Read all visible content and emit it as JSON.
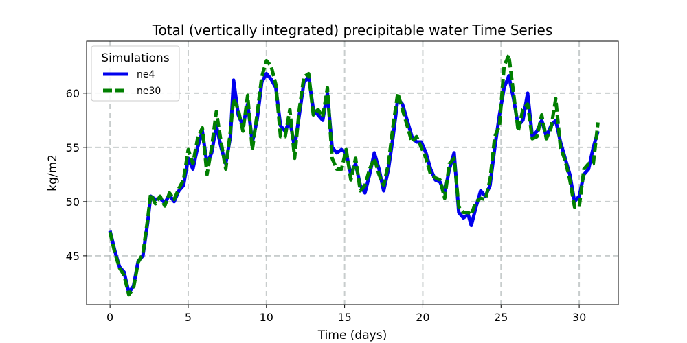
{
  "chart_data": {
    "type": "line",
    "title": "Total (vertically integrated) precipitable water Time Series",
    "xlabel": "Time (days)",
    "ylabel": "kg/m2",
    "xlim": [
      -1.5,
      32.5
    ],
    "ylim": [
      40.5,
      64.8
    ],
    "xticks": [
      0,
      5,
      10,
      15,
      20,
      25,
      30
    ],
    "xtick_labels": [
      "0",
      "5",
      "10",
      "15",
      "20",
      "25",
      "30"
    ],
    "yticks": [
      45,
      50,
      55,
      60
    ],
    "ytick_labels": [
      "45",
      "50",
      "55",
      "60"
    ],
    "grid": true,
    "legend": {
      "title": "Simulations",
      "position": "top-left"
    },
    "series": [
      {
        "name": "ne4",
        "color": "#0000ee",
        "style": "solid",
        "points": [
          [
            0,
            47.3
          ],
          [
            0.3,
            45.5
          ],
          [
            0.6,
            44.0
          ],
          [
            0.9,
            43.5
          ],
          [
            1.2,
            41.6
          ],
          [
            1.5,
            42.2
          ],
          [
            1.8,
            44.5
          ],
          [
            2.1,
            45.0
          ],
          [
            2.4,
            48.0
          ],
          [
            2.6,
            50.5
          ],
          [
            2.9,
            50.2
          ],
          [
            3.2,
            50.3
          ],
          [
            3.5,
            49.9
          ],
          [
            3.8,
            50.6
          ],
          [
            4.1,
            50.0
          ],
          [
            4.4,
            51.0
          ],
          [
            4.7,
            51.5
          ],
          [
            5.0,
            54.0
          ],
          [
            5.3,
            53.0
          ],
          [
            5.6,
            55.0
          ],
          [
            5.9,
            56.5
          ],
          [
            6.2,
            53.5
          ],
          [
            6.5,
            54.5
          ],
          [
            6.8,
            57.0
          ],
          [
            7.1,
            55.0
          ],
          [
            7.4,
            53.5
          ],
          [
            7.7,
            56.0
          ],
          [
            7.9,
            61.2
          ],
          [
            8.2,
            58.0
          ],
          [
            8.5,
            57.0
          ],
          [
            8.8,
            59.0
          ],
          [
            9.1,
            55.5
          ],
          [
            9.4,
            57.5
          ],
          [
            9.7,
            61.0
          ],
          [
            10.0,
            61.8
          ],
          [
            10.3,
            61.3
          ],
          [
            10.6,
            60.5
          ],
          [
            10.9,
            57.0
          ],
          [
            11.2,
            56.5
          ],
          [
            11.5,
            57.5
          ],
          [
            11.8,
            55.0
          ],
          [
            12.1,
            58.0
          ],
          [
            12.4,
            61.0
          ],
          [
            12.7,
            61.5
          ],
          [
            13.0,
            58.5
          ],
          [
            13.3,
            58.0
          ],
          [
            13.6,
            57.5
          ],
          [
            13.9,
            60.0
          ],
          [
            14.2,
            55.0
          ],
          [
            14.5,
            54.5
          ],
          [
            14.8,
            54.8
          ],
          [
            15.1,
            54.5
          ],
          [
            15.4,
            52.5
          ],
          [
            15.7,
            53.5
          ],
          [
            16.0,
            51.5
          ],
          [
            16.3,
            50.8
          ],
          [
            16.6,
            52.5
          ],
          [
            16.9,
            54.5
          ],
          [
            17.2,
            53.0
          ],
          [
            17.5,
            51.0
          ],
          [
            17.8,
            53.0
          ],
          [
            18.1,
            56.0
          ],
          [
            18.4,
            59.5
          ],
          [
            18.7,
            59.0
          ],
          [
            19.0,
            57.5
          ],
          [
            19.3,
            56.0
          ],
          [
            19.6,
            55.5
          ],
          [
            19.9,
            55.5
          ],
          [
            20.2,
            54.5
          ],
          [
            20.5,
            53.0
          ],
          [
            20.8,
            52.0
          ],
          [
            21.1,
            51.8
          ],
          [
            21.4,
            50.8
          ],
          [
            21.7,
            53.0
          ],
          [
            22.0,
            54.5
          ],
          [
            22.3,
            49.0
          ],
          [
            22.6,
            48.5
          ],
          [
            22.9,
            48.8
          ],
          [
            23.1,
            47.8
          ],
          [
            23.4,
            49.5
          ],
          [
            23.7,
            51.0
          ],
          [
            24.0,
            50.5
          ],
          [
            24.3,
            51.5
          ],
          [
            24.6,
            55.0
          ],
          [
            24.9,
            58.0
          ],
          [
            25.2,
            60.5
          ],
          [
            25.5,
            61.6
          ],
          [
            25.8,
            59.5
          ],
          [
            26.1,
            57.0
          ],
          [
            26.4,
            57.5
          ],
          [
            26.7,
            60.0
          ],
          [
            27.0,
            56.0
          ],
          [
            27.3,
            56.5
          ],
          [
            27.6,
            57.5
          ],
          [
            27.9,
            56.0
          ],
          [
            28.2,
            57.0
          ],
          [
            28.5,
            57.5
          ],
          [
            28.8,
            55.5
          ],
          [
            29.1,
            54.0
          ],
          [
            29.4,
            52.5
          ],
          [
            29.7,
            50.0
          ],
          [
            30.0,
            50.5
          ],
          [
            30.3,
            52.5
          ],
          [
            30.6,
            53.0
          ],
          [
            30.9,
            55.0
          ],
          [
            31.2,
            56.5
          ]
        ]
      },
      {
        "name": "ne30",
        "color": "#007f00",
        "style": "dashed",
        "points": [
          [
            0,
            47.2
          ],
          [
            0.3,
            45.3
          ],
          [
            0.6,
            43.9
          ],
          [
            0.9,
            43.2
          ],
          [
            1.2,
            41.4
          ],
          [
            1.5,
            42.0
          ],
          [
            1.8,
            44.4
          ],
          [
            2.1,
            45.2
          ],
          [
            2.4,
            48.3
          ],
          [
            2.6,
            50.7
          ],
          [
            2.9,
            49.8
          ],
          [
            3.2,
            50.5
          ],
          [
            3.5,
            49.6
          ],
          [
            3.8,
            50.8
          ],
          [
            4.1,
            50.2
          ],
          [
            4.4,
            51.2
          ],
          [
            4.7,
            52.0
          ],
          [
            5.0,
            54.8
          ],
          [
            5.3,
            53.5
          ],
          [
            5.6,
            55.8
          ],
          [
            5.9,
            56.8
          ],
          [
            6.2,
            52.5
          ],
          [
            6.5,
            55.0
          ],
          [
            6.8,
            58.3
          ],
          [
            7.1,
            55.5
          ],
          [
            7.4,
            53.0
          ],
          [
            7.7,
            56.5
          ],
          [
            7.9,
            59.5
          ],
          [
            8.2,
            58.5
          ],
          [
            8.5,
            56.5
          ],
          [
            8.8,
            59.8
          ],
          [
            9.1,
            54.8
          ],
          [
            9.4,
            58.0
          ],
          [
            9.7,
            61.5
          ],
          [
            10.0,
            63.0
          ],
          [
            10.3,
            62.5
          ],
          [
            10.6,
            60.8
          ],
          [
            10.9,
            56.0
          ],
          [
            11.2,
            56.0
          ],
          [
            11.5,
            58.5
          ],
          [
            11.8,
            54.0
          ],
          [
            12.1,
            58.5
          ],
          [
            12.4,
            61.5
          ],
          [
            12.7,
            61.8
          ],
          [
            13.0,
            58.0
          ],
          [
            13.3,
            58.5
          ],
          [
            13.6,
            57.8
          ],
          [
            13.9,
            60.5
          ],
          [
            14.2,
            54.0
          ],
          [
            14.5,
            53.0
          ],
          [
            14.8,
            53.0
          ],
          [
            15.1,
            54.8
          ],
          [
            15.4,
            52.0
          ],
          [
            15.7,
            54.0
          ],
          [
            16.0,
            51.0
          ],
          [
            16.3,
            51.5
          ],
          [
            16.6,
            53.0
          ],
          [
            16.9,
            54.0
          ],
          [
            17.2,
            52.5
          ],
          [
            17.5,
            51.5
          ],
          [
            17.8,
            53.5
          ],
          [
            18.1,
            57.0
          ],
          [
            18.4,
            60.0
          ],
          [
            18.7,
            58.5
          ],
          [
            19.0,
            57.0
          ],
          [
            19.3,
            55.5
          ],
          [
            19.6,
            56.0
          ],
          [
            19.9,
            55.0
          ],
          [
            20.2,
            54.0
          ],
          [
            20.5,
            52.5
          ],
          [
            20.8,
            52.2
          ],
          [
            21.1,
            52.0
          ],
          [
            21.4,
            50.3
          ],
          [
            21.7,
            53.5
          ],
          [
            22.0,
            54.0
          ],
          [
            22.3,
            49.5
          ],
          [
            22.6,
            49.0
          ],
          [
            22.9,
            49.0
          ],
          [
            23.1,
            48.8
          ],
          [
            23.4,
            50.0
          ],
          [
            23.7,
            50.3
          ],
          [
            24.0,
            50.2
          ],
          [
            24.3,
            52.0
          ],
          [
            24.6,
            56.0
          ],
          [
            24.9,
            57.0
          ],
          [
            25.2,
            62.5
          ],
          [
            25.5,
            63.5
          ],
          [
            25.8,
            60.0
          ],
          [
            26.1,
            56.5
          ],
          [
            26.4,
            58.5
          ],
          [
            26.7,
            59.0
          ],
          [
            27.0,
            55.8
          ],
          [
            27.3,
            56.0
          ],
          [
            27.6,
            58.0
          ],
          [
            27.9,
            55.8
          ],
          [
            28.2,
            56.8
          ],
          [
            28.5,
            59.5
          ],
          [
            28.8,
            55.0
          ],
          [
            29.1,
            53.8
          ],
          [
            29.4,
            52.0
          ],
          [
            29.7,
            49.5
          ],
          [
            30.0,
            49.5
          ],
          [
            30.3,
            53.0
          ],
          [
            30.6,
            53.5
          ],
          [
            30.9,
            53.5
          ],
          [
            31.2,
            57.3
          ]
        ]
      }
    ]
  }
}
